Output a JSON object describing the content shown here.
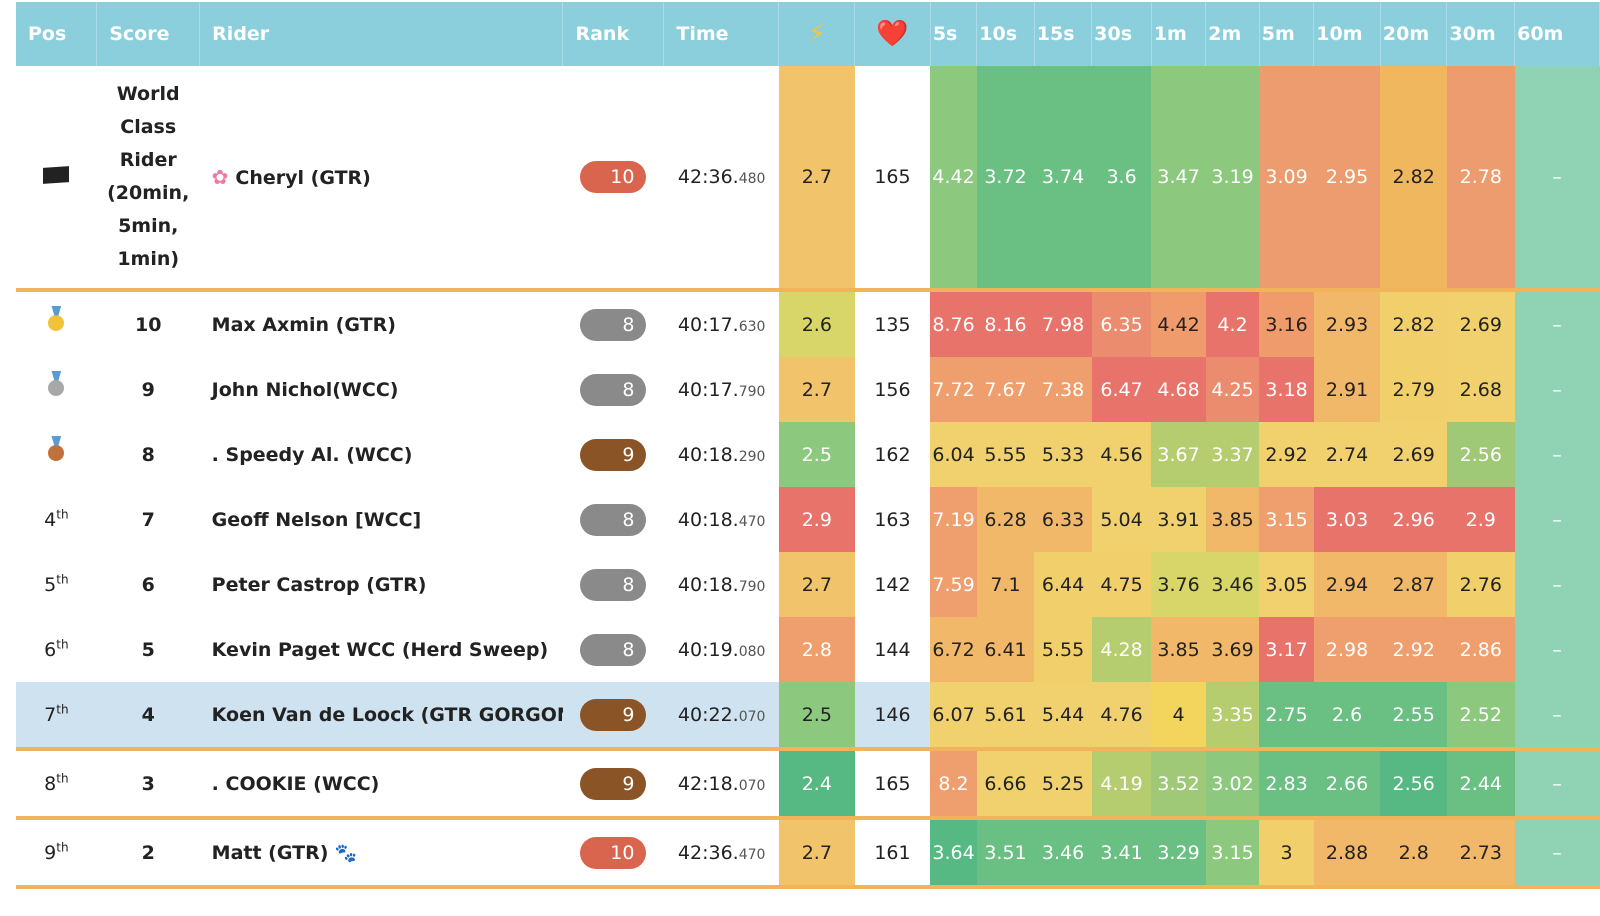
{
  "headers": {
    "pos": "Pos",
    "score": "Score",
    "rider": "Rider",
    "rank": "Rank",
    "time": "Time",
    "power_icon": "⚡",
    "heart_icon": "❤️",
    "intervals": [
      "5s",
      "10s",
      "15s",
      "30s",
      "1m",
      "2m",
      "5m",
      "10m",
      "20m",
      "30m",
      "60m"
    ]
  },
  "colors": {
    "header_bg": "#8ccfdc",
    "separator": "#f1b45a",
    "highlight_row": "#cfe2ef",
    "rank_red": "#d9654f",
    "rank_gray": "#8a8a8a",
    "rank_brown": "#8a5427"
  },
  "rows": [
    {
      "pos": "",
      "pos_icon": "flag-icon",
      "score": "World Class Rider (20min, 5min, 1min)",
      "rider": "Cheryl (GTR)",
      "rider_icon": "flower-icon",
      "rank": "10",
      "rank_color": "red",
      "time_main": "42:36.",
      "time_ms": "480",
      "wkg": "2.7",
      "hr": "165",
      "metrics": [
        "4.42",
        "3.72",
        "3.74",
        "3.6",
        "3.47",
        "3.19",
        "3.09",
        "2.95",
        "2.82",
        "2.78",
        "–"
      ],
      "metric_colors": [
        "#8cc97f",
        "#6abf83",
        "#6abf83",
        "#6abf83",
        "#8cc97f",
        "#8cc97f",
        "#ec9c6e",
        "#ec9c6e",
        "#f1b75f",
        "#ec9c6e",
        "#8fd3b4"
      ],
      "wkg_color": "#f1c36b",
      "hr_color": "#ffffff"
    },
    {
      "pos": "",
      "pos_icon": "gold-medal-icon",
      "score": "10",
      "rider": "Max Axmin (GTR)",
      "rank": "8",
      "rank_color": "gray",
      "time_main": "40:17.",
      "time_ms": "630",
      "wkg": "2.6",
      "hr": "135",
      "metrics": [
        "8.76",
        "8.16",
        "7.98",
        "6.35",
        "4.42",
        "4.2",
        "3.16",
        "2.93",
        "2.82",
        "2.69",
        "–"
      ],
      "metric_colors": [
        "#e8736a",
        "#e8736a",
        "#e8736a",
        "#eb8c6e",
        "#ef9b6b",
        "#e8736a",
        "#ef9b6b",
        "#f1b86a",
        "#f1cf6b",
        "#f0d16d",
        "#8fd3b4"
      ],
      "wkg_color": "#d8d569",
      "hr_color": "#ffffff"
    },
    {
      "pos": "",
      "pos_icon": "silver-medal-icon",
      "score": "9",
      "rider": "John Nichol(WCC)",
      "rank": "8",
      "rank_color": "gray",
      "time_main": "40:17.",
      "time_ms": "790",
      "wkg": "2.7",
      "hr": "156",
      "metrics": [
        "7.72",
        "7.67",
        "7.38",
        "6.47",
        "4.68",
        "4.25",
        "3.18",
        "2.91",
        "2.79",
        "2.68",
        "–"
      ],
      "metric_colors": [
        "#ef9f6d",
        "#ef9f6d",
        "#ef9f6d",
        "#e8736a",
        "#e8736a",
        "#eb8c6e",
        "#e8736a",
        "#f1b86a",
        "#f1cf6b",
        "#f0d16d",
        "#8fd3b4"
      ],
      "wkg_color": "#f1c36b",
      "hr_color": "#ffffff"
    },
    {
      "pos": "",
      "pos_icon": "bronze-medal-icon",
      "score": "8",
      "rider": ". Speedy Al. (WCC)",
      "rank": "9",
      "rank_color": "brown",
      "time_main": "40:18.",
      "time_ms": "290",
      "wkg": "2.5",
      "hr": "162",
      "metrics": [
        "6.04",
        "5.55",
        "5.33",
        "4.56",
        "3.67",
        "3.37",
        "2.92",
        "2.74",
        "2.69",
        "2.56",
        "–"
      ],
      "metric_colors": [
        "#f0d16d",
        "#f0d16d",
        "#f0d16d",
        "#f0d16d",
        "#b6cd6f",
        "#b6cd6f",
        "#f0d16d",
        "#f0d16d",
        "#f0d16d",
        "#9fc877",
        "#8fd3b4"
      ],
      "wkg_color": "#8cc97f",
      "hr_color": "#ffffff"
    },
    {
      "pos": "4th",
      "score": "7",
      "rider": "Geoff Nelson [WCC]",
      "rank": "8",
      "rank_color": "gray",
      "time_main": "40:18.",
      "time_ms": "470",
      "wkg": "2.9",
      "hr": "163",
      "metrics": [
        "7.19",
        "6.28",
        "6.33",
        "5.04",
        "3.91",
        "3.85",
        "3.15",
        "3.03",
        "2.96",
        "2.9",
        "–"
      ],
      "metric_colors": [
        "#ef9f6d",
        "#f1b86a",
        "#f1b86a",
        "#f0d16d",
        "#f0d16d",
        "#f1b86a",
        "#ef9f6d",
        "#e8736a",
        "#e8736a",
        "#e8736a",
        "#8fd3b4"
      ],
      "wkg_color": "#e8736a",
      "hr_color": "#ffffff"
    },
    {
      "pos": "5th",
      "score": "6",
      "rider": "Peter Castrop (GTR)",
      "rank": "8",
      "rank_color": "gray",
      "time_main": "40:18.",
      "time_ms": "790",
      "wkg": "2.7",
      "hr": "142",
      "metrics": [
        "7.59",
        "7.1",
        "6.44",
        "4.75",
        "3.76",
        "3.46",
        "3.05",
        "2.94",
        "2.87",
        "2.76",
        "–"
      ],
      "metric_colors": [
        "#ef9f6d",
        "#f1b86a",
        "#f1cf6b",
        "#f1cf6b",
        "#d8d569",
        "#d8d569",
        "#f0d16d",
        "#f1b86a",
        "#f1b86a",
        "#f1cf6b",
        "#8fd3b4"
      ],
      "wkg_color": "#f1c36b",
      "hr_color": "#ffffff"
    },
    {
      "pos": "6th",
      "score": "5",
      "rider": "Kevin Paget WCC (Herd Sweep)",
      "rank": "8",
      "rank_color": "gray",
      "time_main": "40:19.",
      "time_ms": "080",
      "wkg": "2.8",
      "hr": "144",
      "metrics": [
        "6.72",
        "6.41",
        "5.55",
        "4.28",
        "3.85",
        "3.69",
        "3.17",
        "2.98",
        "2.92",
        "2.86",
        "–"
      ],
      "metric_colors": [
        "#f1b86a",
        "#f1b86a",
        "#f1cf6b",
        "#b6cd6f",
        "#f1b86a",
        "#f1b86a",
        "#e8736a",
        "#ef9f6d",
        "#ef9f6d",
        "#ef9f6d",
        "#8fd3b4"
      ],
      "wkg_color": "#ef9f6d",
      "hr_color": "#ffffff"
    },
    {
      "pos": "7th",
      "score": "4",
      "rider": "Koen Van de Loock (GTR GORGONS)",
      "rank": "9",
      "rank_color": "brown",
      "time_main": "40:22.",
      "time_ms": "070",
      "wkg": "2.5",
      "hr": "146",
      "metrics": [
        "6.07",
        "5.61",
        "5.44",
        "4.76",
        "4",
        "3.35",
        "2.75",
        "2.6",
        "2.55",
        "2.52",
        "–"
      ],
      "metric_colors": [
        "#f0d16d",
        "#f0d16d",
        "#f0d16d",
        "#f0d16d",
        "#f3d45c",
        "#b6cd6f",
        "#6abf83",
        "#6abf83",
        "#6abf83",
        "#8cc97f",
        "#8fd3b4"
      ],
      "wkg_color": "#8cc97f",
      "hr_color": "#cfe2ef",
      "highlight": true
    },
    {
      "pos": "8th",
      "score": "3",
      "rider": ". COOKIE (WCC)",
      "rank": "9",
      "rank_color": "brown",
      "time_main": "42:18.",
      "time_ms": "070",
      "wkg": "2.4",
      "hr": "165",
      "metrics": [
        "8.2",
        "6.66",
        "5.25",
        "4.19",
        "3.52",
        "3.02",
        "2.83",
        "2.66",
        "2.56",
        "2.44",
        "–"
      ],
      "metric_colors": [
        "#ef9f6d",
        "#f0d16d",
        "#f0d16d",
        "#b6cd6f",
        "#9fc877",
        "#8cc97f",
        "#6abf83",
        "#6abf83",
        "#56b883",
        "#6abf83",
        "#8fd3b4"
      ],
      "wkg_color": "#56b883",
      "hr_color": "#ffffff"
    },
    {
      "pos": "9th",
      "score": "2",
      "rider": "Matt (GTR)",
      "rider_icon": "paw-icon",
      "rank": "10",
      "rank_color": "red",
      "time_main": "42:36.",
      "time_ms": "470",
      "wkg": "2.7",
      "hr": "161",
      "metrics": [
        "3.64",
        "3.51",
        "3.46",
        "3.41",
        "3.29",
        "3.15",
        "3",
        "2.88",
        "2.8",
        "2.73",
        "–"
      ],
      "metric_colors": [
        "#56b883",
        "#6abf83",
        "#6abf83",
        "#6abf83",
        "#6abf83",
        "#8cc97f",
        "#f1cf6b",
        "#f1b86a",
        "#f1b86a",
        "#f1b86a",
        "#8fd3b4"
      ],
      "wkg_color": "#f1c36b",
      "hr_color": "#ffffff"
    }
  ]
}
